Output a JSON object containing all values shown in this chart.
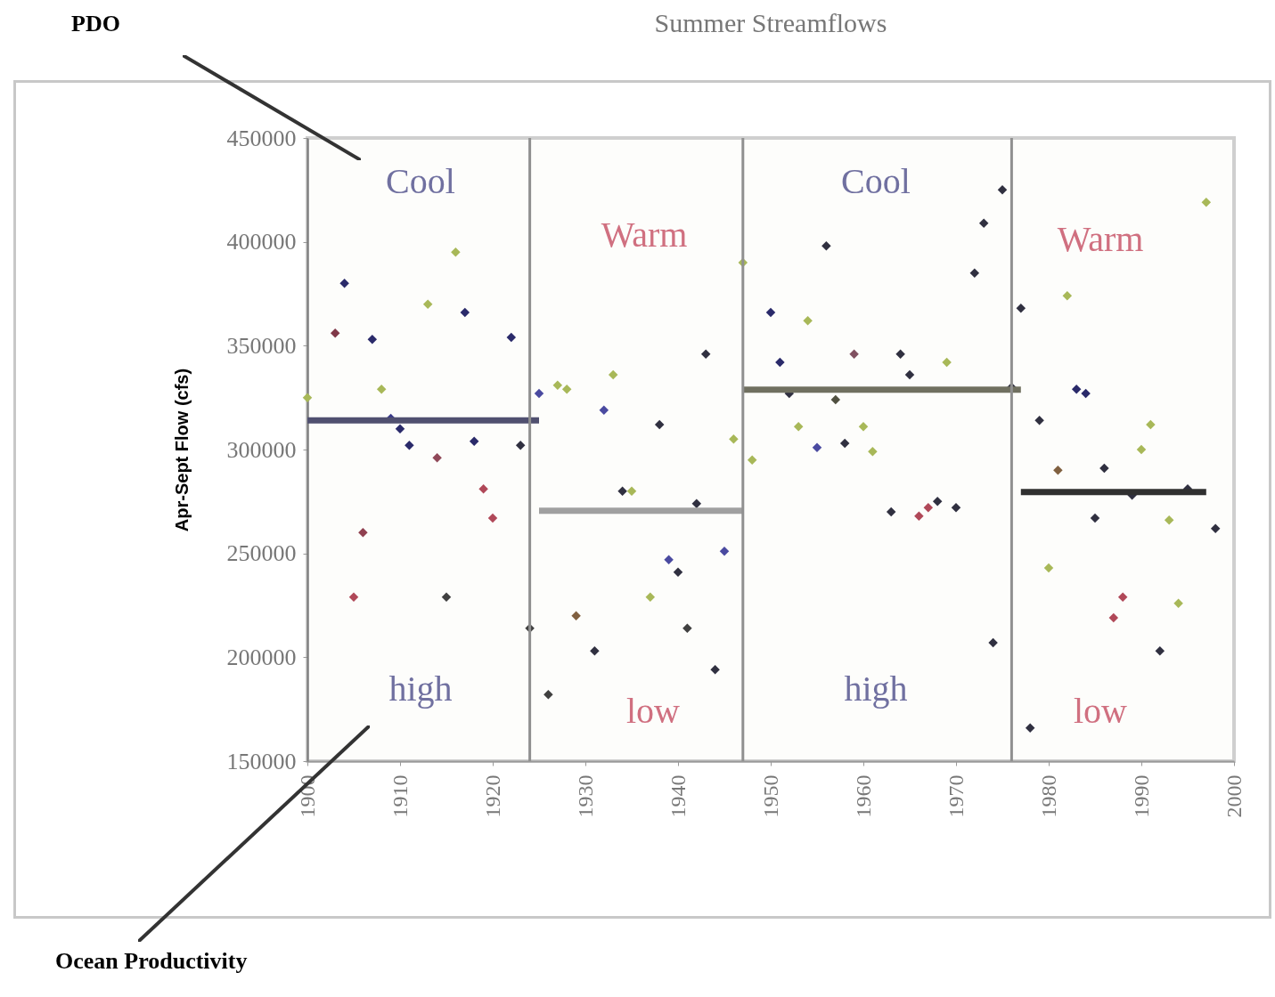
{
  "chart_data": {
    "type": "scatter",
    "title": "Summer Streamflows",
    "ylabel": "Apr-Sept Flow (cfs)",
    "xlim": [
      1900,
      2000
    ],
    "xticks": [
      1900,
      1910,
      1920,
      1930,
      1940,
      1950,
      1960,
      1970,
      1980,
      1990,
      2000
    ],
    "ylim": [
      150000,
      450000
    ],
    "yticks": [
      150000,
      200000,
      250000,
      300000,
      350000,
      400000,
      450000
    ],
    "series": [
      {
        "marker": "diamond",
        "x": [
          1900,
          1903,
          1904,
          1905,
          1906,
          1907,
          1908,
          1909,
          1910,
          1911,
          1913,
          1914,
          1915,
          1916,
          1917,
          1918,
          1919,
          1920,
          1922,
          1923,
          1924,
          1925,
          1926,
          1927,
          1928,
          1929,
          1931,
          1932,
          1933,
          1934,
          1935,
          1937,
          1938,
          1939,
          1940,
          1941,
          1942,
          1943,
          1944,
          1945,
          1946,
          1947,
          1948,
          1950,
          1951,
          1952,
          1953,
          1954,
          1955,
          1956,
          1957,
          1958,
          1959,
          1960,
          1961,
          1963,
          1964,
          1965,
          1966,
          1967,
          1968,
          1969,
          1970,
          1972,
          1973,
          1974,
          1975,
          1976,
          1977,
          1978,
          1979,
          1980,
          1981,
          1982,
          1983,
          1984,
          1985,
          1986,
          1987,
          1988,
          1989,
          1990,
          1991,
          1992,
          1993,
          1994,
          1995,
          1997,
          1998
        ],
        "values": [
          325000,
          356000,
          380000,
          229000,
          260000,
          353000,
          329000,
          315000,
          310000,
          302000,
          370000,
          296000,
          229000,
          395000,
          366000,
          304000,
          281000,
          267000,
          354000,
          302000,
          214000,
          327000,
          182000,
          331000,
          329000,
          220000,
          203000,
          319000,
          336000,
          280000,
          280000,
          229000,
          312000,
          247000,
          241000,
          214000,
          274000,
          346000,
          194000,
          251000,
          305000,
          390000,
          295000,
          366000,
          342000,
          327000,
          311000,
          362000,
          301000,
          398000,
          324000,
          303000,
          346000,
          311000,
          299000,
          270000,
          346000,
          336000,
          268000,
          272000,
          275000,
          342000,
          272000,
          385000,
          409000,
          207000,
          425000,
          330000,
          368000,
          166000,
          314000,
          243000,
          290000,
          374000,
          329000,
          327000,
          267000,
          291000,
          219000,
          229000,
          278000,
          300000,
          312000,
          203000,
          266000,
          226000,
          281000,
          419000,
          262000
        ],
        "colors": [
          "#a8b858",
          "#803848",
          "#2a2a6a",
          "#b04858",
          "#904050",
          "#2a2a6a",
          "#a8b858",
          "#3a3a8a",
          "#2a2a6a",
          "#2a2a6a",
          "#a8b858",
          "#904858",
          "#404040",
          "#a8b858",
          "#2a2a6a",
          "#2a2a6a",
          "#b04858",
          "#b04858",
          "#2a2a6a",
          "#303040",
          "#404040",
          "#4a4aa0",
          "#404040",
          "#a8b858",
          "#a8b858",
          "#806040",
          "#303040",
          "#4a4aa0",
          "#a8b858",
          "#303040",
          "#a8b858",
          "#a8b858",
          "#303040",
          "#4a4aa0",
          "#303040",
          "#404040",
          "#303040",
          "#303040",
          "#303040",
          "#4a4aa0",
          "#a8b858",
          "#a8b858",
          "#a8b858",
          "#2a2a6a",
          "#2a2a6a",
          "#303040",
          "#a8b858",
          "#a8b858",
          "#4a4aa0",
          "#303040",
          "#505040",
          "#303040",
          "#805060",
          "#a8b858",
          "#a8b858",
          "#303040",
          "#303040",
          "#303040",
          "#b04858",
          "#b04858",
          "#303040",
          "#a8b858",
          "#303040",
          "#303040",
          "#303040",
          "#303040",
          "#303040",
          "#303040",
          "#303040",
          "#303040",
          "#303040",
          "#a8b858",
          "#806040",
          "#a8b858",
          "#2a2a6a",
          "#2a2a6a",
          "#303040",
          "#303040",
          "#b04858",
          "#b04858",
          "#303040",
          "#a8b858",
          "#a8b858",
          "#303040",
          "#a8b858",
          "#a8b858",
          "#303040",
          "#a8b858",
          "#303040"
        ]
      },
      {
        "type": "line",
        "x": [
          1900,
          1925
        ],
        "values": [
          314000,
          314000
        ],
        "color": "#505070"
      },
      {
        "type": "line",
        "x": [
          1925,
          1947
        ],
        "values": [
          270500,
          270500
        ],
        "color": "#a0a0a0"
      },
      {
        "type": "line",
        "x": [
          1947,
          1977
        ],
        "values": [
          328800,
          328800
        ],
        "color": "#707060"
      },
      {
        "type": "line",
        "x": [
          1977,
          1997
        ],
        "values": [
          279500,
          279500
        ],
        "color": "#303030"
      }
    ],
    "ref_lines": [
      {
        "axis": "x",
        "value": 1924,
        "color": "#909090"
      },
      {
        "axis": "x",
        "value": 1947,
        "color": "#909090"
      },
      {
        "axis": "x",
        "value": 1976,
        "color": "#909090"
      }
    ],
    "annotations": [
      "PDO",
      "Ocean Productivity",
      "Cool",
      "Warm",
      "Cool",
      "Warm",
      "high",
      "low",
      "high",
      "low"
    ]
  }
}
